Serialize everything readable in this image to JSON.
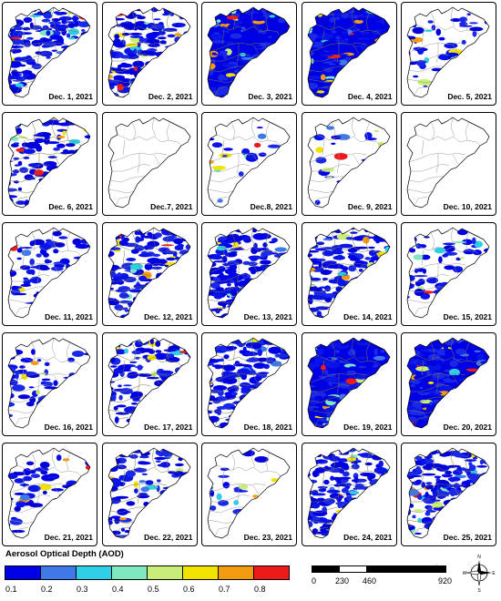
{
  "panels": [
    {
      "date": "Dec. 1, 2021",
      "coverage": "high"
    },
    {
      "date": "Dec. 2, 2021",
      "coverage": "high"
    },
    {
      "date": "Dec. 3, 2021",
      "coverage": "full"
    },
    {
      "date": "Dec. 4, 2021",
      "coverage": "full"
    },
    {
      "date": "Dec. 5, 2021",
      "coverage": "low"
    },
    {
      "date": "Dec. 6, 2021",
      "coverage": "medium"
    },
    {
      "date": "Dec.7, 2021",
      "coverage": "none"
    },
    {
      "date": "Dec.8, 2021",
      "coverage": "sparse"
    },
    {
      "date": "Dec. 9, 2021",
      "coverage": "sparse"
    },
    {
      "date": "Dec. 10, 2021",
      "coverage": "none"
    },
    {
      "date": "Dec. 11, 2021",
      "coverage": "low"
    },
    {
      "date": "Dec. 12, 2021",
      "coverage": "high"
    },
    {
      "date": "Dec. 13, 2021",
      "coverage": "high"
    },
    {
      "date": "Dec. 14, 2021",
      "coverage": "high"
    },
    {
      "date": "Dec. 15, 2021",
      "coverage": "low"
    },
    {
      "date": "Dec. 16, 2021",
      "coverage": "low"
    },
    {
      "date": "Dec. 17, 2021",
      "coverage": "medium"
    },
    {
      "date": "Dec. 18, 2021",
      "coverage": "high"
    },
    {
      "date": "Dec. 19, 2021",
      "coverage": "full"
    },
    {
      "date": "Dec. 20, 2021",
      "coverage": "full"
    },
    {
      "date": "Dec. 21, 2021",
      "coverage": "low"
    },
    {
      "date": "Dec. 22, 2021",
      "coverage": "medium"
    },
    {
      "date": "Dec. 23, 2021",
      "coverage": "sparse"
    },
    {
      "date": "Dec. 24, 2021",
      "coverage": "high"
    },
    {
      "date": "Dec. 25, 2021",
      "coverage": "high"
    }
  ],
  "legend": {
    "title": "Aerosol Optical Depth (AOD)",
    "ticks": [
      "0.1",
      "0.2",
      "0.3",
      "0.4",
      "0.5",
      "0.6",
      "0.7",
      "0.8"
    ],
    "colors": [
      "#0000e6",
      "#3f78e8",
      "#2fcfe8",
      "#7fe8c0",
      "#c8ee78",
      "#f2e200",
      "#f29a10",
      "#ee1a1a"
    ]
  },
  "scale_bar": {
    "unit": "km",
    "ticks": [
      "0",
      "230",
      "460",
      "920"
    ]
  },
  "compass": {
    "labels": [
      "N",
      "E",
      "S",
      "W"
    ]
  },
  "colors": {
    "outline": "#000000",
    "boundary": "#7a7a40"
  }
}
